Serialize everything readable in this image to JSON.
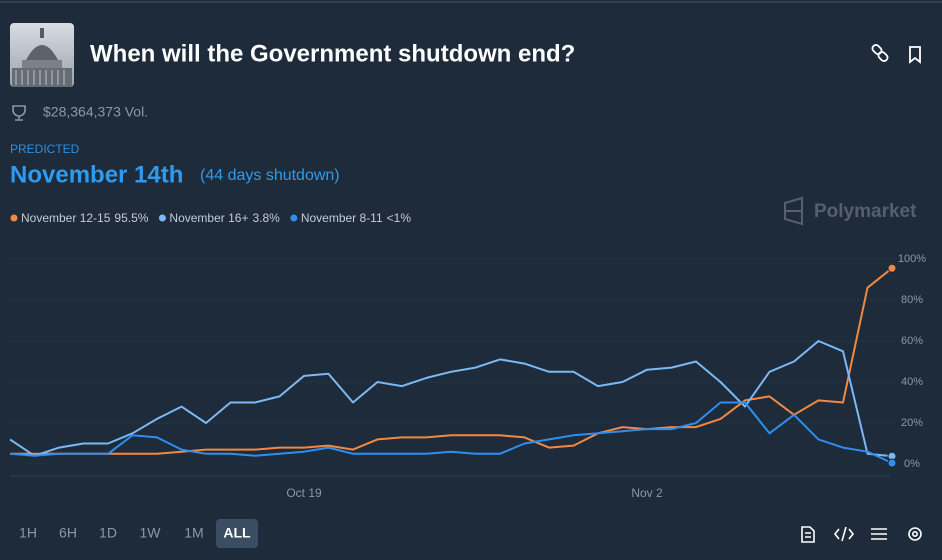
{
  "header": {
    "title": "When will the Government shutdown end?",
    "volume": "$28,364,373 Vol."
  },
  "prediction": {
    "kicker": "PREDICTED",
    "headline": "November 14th",
    "detail": "(44 days shutdown)"
  },
  "brand": "Polymarket",
  "ranges": {
    "options": [
      "1H",
      "6H",
      "1D",
      "1W",
      "1M",
      "ALL"
    ],
    "active": 5
  },
  "chart_data": {
    "type": "line",
    "categories": [
      null,
      null,
      null,
      null,
      null,
      null,
      null,
      null,
      null,
      null,
      null,
      null,
      "Oct 19",
      null,
      null,
      null,
      null,
      null,
      null,
      null,
      null,
      null,
      null,
      null,
      null,
      null,
      "Nov 2",
      null,
      null,
      null,
      null,
      null,
      null,
      null,
      null,
      null,
      null
    ],
    "series": [
      {
        "name": "November 12-15",
        "color": "#f5883f",
        "values": [
          5,
          5,
          5,
          5,
          5,
          5,
          5,
          6,
          7,
          7,
          7,
          8,
          8,
          9,
          7,
          12,
          13,
          13,
          14,
          14,
          14,
          13,
          8,
          9,
          15,
          18,
          17,
          18,
          18,
          22,
          31,
          33,
          24,
          31,
          30,
          86,
          95.5
        ],
        "value_labels": [
          null,
          null,
          null,
          null,
          null,
          null,
          null,
          null,
          null,
          null,
          null,
          null,
          null,
          null,
          null,
          null,
          null,
          null,
          null,
          null,
          null,
          null,
          null,
          null,
          null,
          null,
          null,
          null,
          null,
          null,
          null,
          null,
          null,
          null,
          null,
          null,
          "95.5%"
        ]
      },
      {
        "name": "November 16+",
        "color": "#7cb9f4",
        "values": [
          12,
          4,
          8,
          10,
          10,
          15,
          22,
          28,
          20,
          30,
          30,
          33,
          43,
          44,
          30,
          40,
          38,
          42,
          45,
          47,
          51,
          49,
          45,
          45,
          38,
          40,
          46,
          47,
          50,
          40,
          28,
          45,
          50,
          60,
          55,
          5,
          3.8
        ],
        "value_labels": [
          null,
          null,
          null,
          null,
          null,
          null,
          null,
          null,
          null,
          null,
          null,
          null,
          null,
          null,
          null,
          null,
          null,
          null,
          null,
          null,
          null,
          null,
          null,
          null,
          null,
          null,
          null,
          null,
          null,
          null,
          null,
          null,
          null,
          null,
          null,
          null,
          "3.8%"
        ]
      },
      {
        "name": "November 8-11",
        "color": "#2e8ff0",
        "values": [
          5,
          4,
          5,
          5,
          5,
          14,
          13,
          7,
          5,
          5,
          4,
          5,
          6,
          8,
          5,
          5,
          5,
          5,
          6,
          5,
          5,
          10,
          12,
          14,
          15,
          16,
          17,
          17,
          20,
          30,
          30,
          15,
          24,
          12,
          8,
          6,
          0.5
        ],
        "value_labels": [
          null,
          null,
          null,
          null,
          null,
          null,
          null,
          null,
          null,
          null,
          null,
          null,
          null,
          null,
          null,
          null,
          null,
          null,
          null,
          null,
          null,
          null,
          null,
          null,
          null,
          null,
          null,
          null,
          null,
          null,
          null,
          null,
          null,
          null,
          null,
          null,
          "<1%"
        ]
      }
    ],
    "ylim": [
      0,
      100
    ],
    "yticks": [
      {
        "value": 0,
        "label": "0%"
      },
      {
        "value": 20,
        "label": "20%"
      },
      {
        "value": 40,
        "label": "40%"
      },
      {
        "value": 60,
        "label": "60%"
      },
      {
        "value": 80,
        "label": "80%"
      },
      {
        "value": 100,
        "label": "100%"
      }
    ],
    "grid": true
  }
}
